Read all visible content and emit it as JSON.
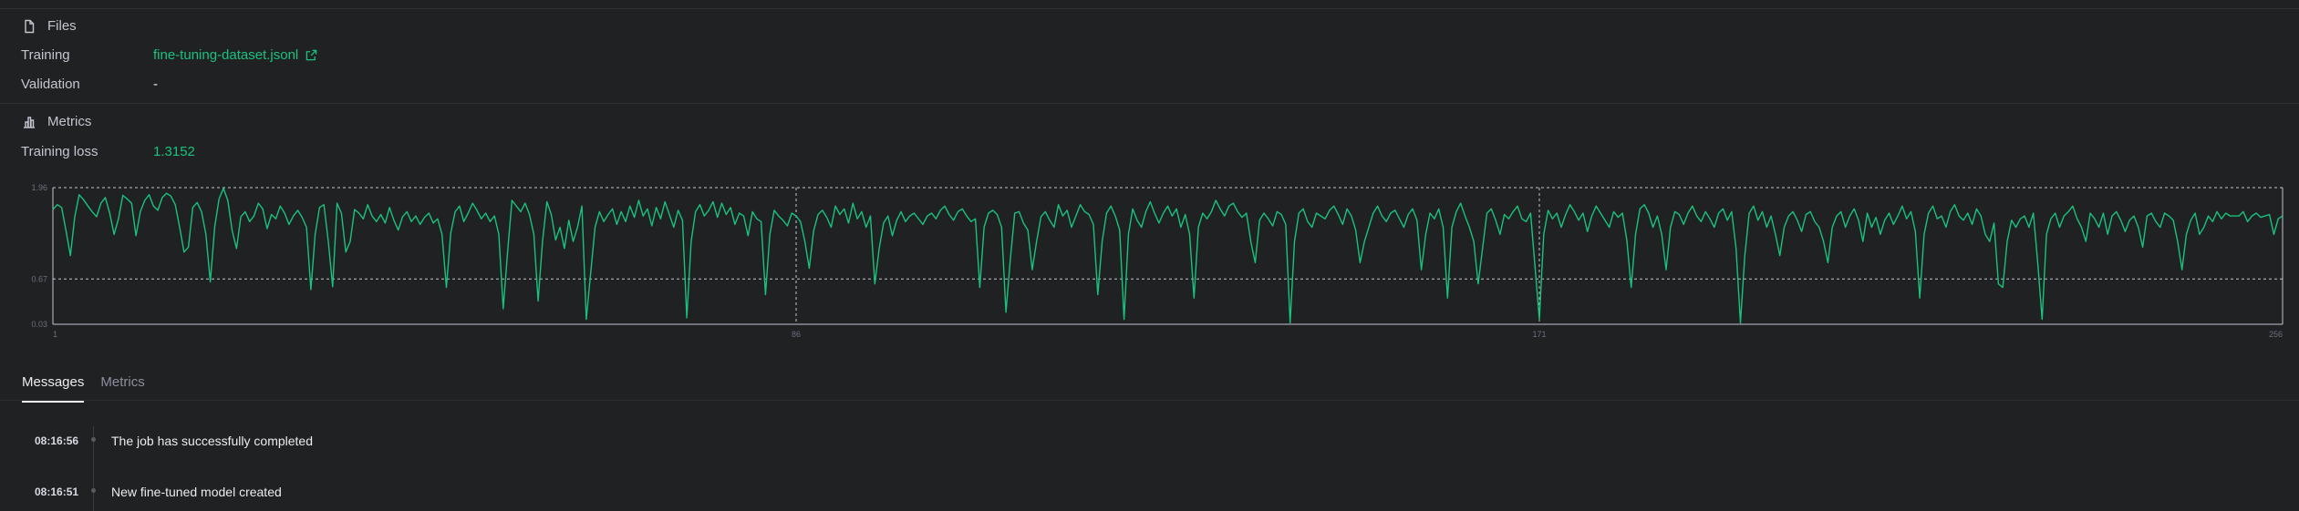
{
  "files": {
    "heading": "Files",
    "heading_icon": "file-icon",
    "training_label": "Training",
    "training_value": "fine-tuning-dataset.jsonl",
    "validation_label": "Validation",
    "validation_value": "-"
  },
  "metrics": {
    "heading": "Metrics",
    "heading_icon": "bar-chart-icon",
    "training_loss_label": "Training loss",
    "training_loss_value": "1.3152"
  },
  "chart_data": {
    "type": "line",
    "y_ticks": [
      "1.96",
      "0.67",
      "0.03"
    ],
    "y_tick_values": [
      1.96,
      0.67,
      0.03
    ],
    "x_ticks": [
      "1",
      "86",
      "171",
      "256"
    ],
    "x_tick_values": [
      1,
      86,
      171,
      256
    ],
    "ylim": [
      0.03,
      1.96
    ],
    "xlim": [
      1,
      256
    ],
    "grid": "dashed",
    "line_color": "#19c37d",
    "series": [
      {
        "x_start": 1,
        "x_step": 0.5,
        "values": [
          1.65,
          1.72,
          1.68,
          1.35,
          1.0,
          1.55,
          1.86,
          1.79,
          1.7,
          1.62,
          1.55,
          1.74,
          1.82,
          1.6,
          1.3,
          1.52,
          1.85,
          1.8,
          1.74,
          1.28,
          1.62,
          1.78,
          1.86,
          1.7,
          1.64,
          1.82,
          1.88,
          1.84,
          1.72,
          1.4,
          1.05,
          1.12,
          1.68,
          1.75,
          1.62,
          1.3,
          0.63,
          1.4,
          1.8,
          1.95,
          1.78,
          1.35,
          1.1,
          1.55,
          1.62,
          1.48,
          1.56,
          1.74,
          1.66,
          1.38,
          1.58,
          1.52,
          1.7,
          1.6,
          1.44,
          1.56,
          1.64,
          1.54,
          1.4,
          0.52,
          1.3,
          1.68,
          1.72,
          1.2,
          0.56,
          1.74,
          1.6,
          1.05,
          1.2,
          1.65,
          1.6,
          1.52,
          1.72,
          1.56,
          1.48,
          1.58,
          1.46,
          1.68,
          1.5,
          1.36,
          1.55,
          1.62,
          1.48,
          1.56,
          1.44,
          1.54,
          1.6,
          1.46,
          1.52,
          1.3,
          0.55,
          1.32,
          1.62,
          1.7,
          1.48,
          1.6,
          1.74,
          1.64,
          1.52,
          1.6,
          1.48,
          1.56,
          1.3,
          0.25,
          1.05,
          1.78,
          1.7,
          1.62,
          1.74,
          1.58,
          1.3,
          0.36,
          1.2,
          1.76,
          1.58,
          1.22,
          1.4,
          1.1,
          1.5,
          1.2,
          1.4,
          1.7,
          0.1,
          0.75,
          1.4,
          1.62,
          1.48,
          1.58,
          1.66,
          1.44,
          1.62,
          1.48,
          1.7,
          1.54,
          1.78,
          1.56,
          1.66,
          1.42,
          1.68,
          1.52,
          1.76,
          1.58,
          1.4,
          1.64,
          1.5,
          0.12,
          1.2,
          1.62,
          1.72,
          1.56,
          1.64,
          1.76,
          1.54,
          1.74,
          1.58,
          1.68,
          1.44,
          1.6,
          1.56,
          1.28,
          1.62,
          1.52,
          1.48,
          0.45,
          1.3,
          1.64,
          1.56,
          1.5,
          1.42,
          1.6,
          1.56,
          1.48,
          1.2,
          0.82,
          1.35,
          1.58,
          1.64,
          1.54,
          1.4,
          1.7,
          1.58,
          1.66,
          1.46,
          1.74,
          1.52,
          1.62,
          1.4,
          1.56,
          0.6,
          1.1,
          1.46,
          1.56,
          1.28,
          1.5,
          1.62,
          1.48,
          1.56,
          1.6,
          1.52,
          1.44,
          1.56,
          1.6,
          1.52,
          1.64,
          1.7,
          1.58,
          1.5,
          1.62,
          1.66,
          1.56,
          1.48,
          1.52,
          0.55,
          1.4,
          1.6,
          1.64,
          1.58,
          1.4,
          0.2,
          0.95,
          1.6,
          1.62,
          1.46,
          1.36,
          0.8,
          1.2,
          1.55,
          1.62,
          1.5,
          1.4,
          1.72,
          1.56,
          1.64,
          1.4,
          1.56,
          1.72,
          1.62,
          1.58,
          1.44,
          0.45,
          1.2,
          1.6,
          1.7,
          1.56,
          1.36,
          0.1,
          1.3,
          1.66,
          1.5,
          1.4,
          1.62,
          1.76,
          1.6,
          1.46,
          1.6,
          1.7,
          1.56,
          1.66,
          1.4,
          1.58,
          1.3,
          0.4,
          1.4,
          1.6,
          1.52,
          1.62,
          1.78,
          1.66,
          1.56,
          1.7,
          1.74,
          1.62,
          1.54,
          1.6,
          1.2,
          0.9,
          1.5,
          1.6,
          1.52,
          1.42,
          1.62,
          1.58,
          1.44,
          0.05,
          1.2,
          1.6,
          1.66,
          1.48,
          1.4,
          1.6,
          1.56,
          1.52,
          1.64,
          1.7,
          1.58,
          1.44,
          1.66,
          1.56,
          1.36,
          0.9,
          1.2,
          1.4,
          1.6,
          1.7,
          1.56,
          1.48,
          1.6,
          1.64,
          1.52,
          1.4,
          1.58,
          1.66,
          1.5,
          0.8,
          1.3,
          1.6,
          1.52,
          1.66,
          1.4,
          0.4,
          1.4,
          1.62,
          1.74,
          1.56,
          1.4,
          1.2,
          0.6,
          1.1,
          1.6,
          1.66,
          1.5,
          1.3,
          1.58,
          1.52,
          1.62,
          1.7,
          1.52,
          1.48,
          1.6,
          0.85,
          0.1,
          1.3,
          1.64,
          1.52,
          1.6,
          1.4,
          1.58,
          1.72,
          1.62,
          1.5,
          1.6,
          1.34,
          1.56,
          1.7,
          1.6,
          1.5,
          1.4,
          1.62,
          1.54,
          1.6,
          1.22,
          0.55,
          1.3,
          1.66,
          1.72,
          1.6,
          1.4,
          1.56,
          1.3,
          0.8,
          1.4,
          1.62,
          1.58,
          1.44,
          1.6,
          1.7,
          1.56,
          1.48,
          1.62,
          1.52,
          1.4,
          1.6,
          1.66,
          1.5,
          1.62,
          1.1,
          0.05,
          1.0,
          1.6,
          1.7,
          1.5,
          1.62,
          1.4,
          1.56,
          1.3,
          1.0,
          1.4,
          1.56,
          1.62,
          1.5,
          1.34,
          1.58,
          1.62,
          1.48,
          1.4,
          1.2,
          0.9,
          1.4,
          1.56,
          1.62,
          1.4,
          1.56,
          1.66,
          1.5,
          1.2,
          1.6,
          1.4,
          1.54,
          1.3,
          1.5,
          1.6,
          1.44,
          1.56,
          1.7,
          1.52,
          1.62,
          1.34,
          0.4,
          1.3,
          1.6,
          1.7,
          1.52,
          1.56,
          1.4,
          1.62,
          1.72,
          1.56,
          1.5,
          1.6,
          1.44,
          1.66,
          1.56,
          1.3,
          1.2,
          1.46,
          0.6,
          0.55,
          1.2,
          1.5,
          1.4,
          1.52,
          1.56,
          1.4,
          1.6,
          0.9,
          0.1,
          1.3,
          1.52,
          1.6,
          1.4,
          1.56,
          1.62,
          1.7,
          1.52,
          1.4,
          1.2,
          1.6,
          1.52,
          1.4,
          1.6,
          1.3,
          1.56,
          1.62,
          1.5,
          1.34,
          1.5,
          1.56,
          1.4,
          1.12,
          1.56,
          1.6,
          1.48,
          1.4,
          1.6,
          1.56,
          1.5,
          1.2,
          0.8,
          1.3,
          1.5,
          1.6,
          1.3,
          1.4,
          1.56,
          1.48,
          1.62,
          1.52,
          1.6,
          1.56,
          1.56,
          1.56,
          1.62,
          1.48,
          1.56,
          1.6,
          1.54,
          1.56,
          1.58,
          1.3,
          1.52,
          1.56,
          1.48,
          1.66,
          1.6,
          1.52,
          1.4,
          1.2,
          1.52,
          1.66,
          1.6,
          1.52,
          1.64,
          1.5,
          1.62,
          1.48,
          1.4,
          1.56,
          1.58,
          1.6
        ]
      }
    ]
  },
  "tabs": [
    {
      "label": "Messages",
      "active": true
    },
    {
      "label": "Metrics",
      "active": false
    }
  ],
  "messages": [
    {
      "time": "08:16:56",
      "text": "The job has successfully completed"
    },
    {
      "time": "08:16:51",
      "text": "New fine-tuned model created"
    }
  ]
}
